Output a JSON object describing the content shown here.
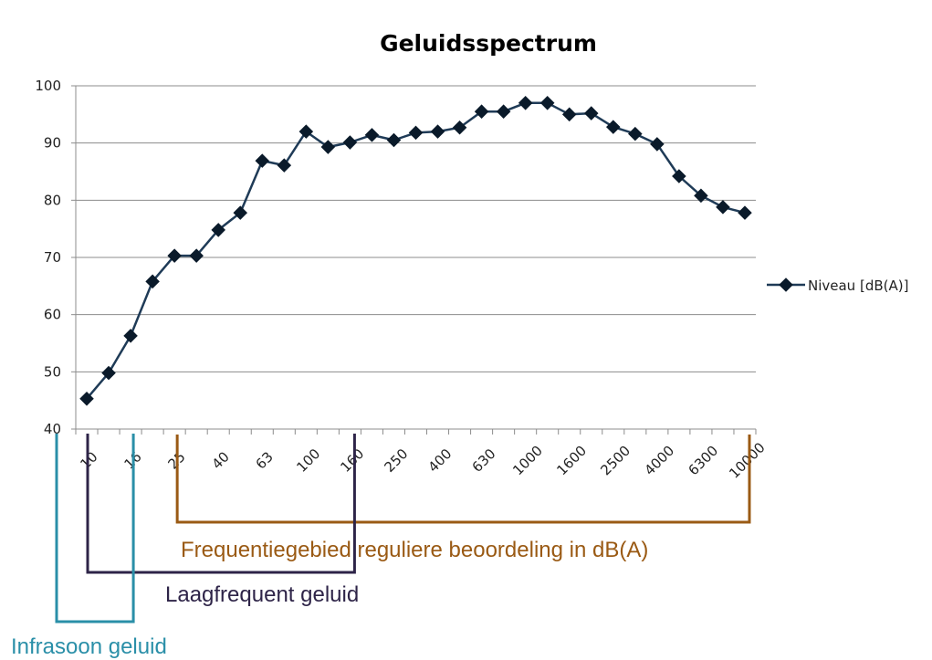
{
  "chart_data": {
    "type": "line",
    "title": "Geluidsspectrum",
    "xlabel": "",
    "ylabel": "",
    "ylim": [
      40,
      100
    ],
    "yticks": [
      "100",
      "90",
      "80",
      "70",
      "60",
      "50",
      "40"
    ],
    "grid": true,
    "legend_position": "right",
    "x_tick_labels": [
      "10",
      "16",
      "25",
      "40",
      "63",
      "100",
      "160",
      "250",
      "400",
      "630",
      "1000",
      "1600",
      "2500",
      "4000",
      "6300",
      "10000"
    ],
    "series": [
      {
        "name": "Niveau [dB(A)]",
        "color": "#1f3b57",
        "x": [
          10,
          12.5,
          16,
          20,
          25,
          31.5,
          40,
          50,
          63,
          80,
          100,
          125,
          160,
          200,
          250,
          315,
          400,
          500,
          630,
          800,
          1000,
          1250,
          1600,
          2000,
          2500,
          3150,
          4000,
          5000,
          6300,
          8000,
          10000
        ],
        "values": [
          45.3,
          49.8,
          56.3,
          65.8,
          70.3,
          70.3,
          74.8,
          77.8,
          86.9,
          86.1,
          92.0,
          89.3,
          90.1,
          91.4,
          90.5,
          91.8,
          92.0,
          92.7,
          95.5,
          95.5,
          97.0,
          97.0,
          95.0,
          95.2,
          92.8,
          91.6,
          89.8,
          84.2,
          80.8,
          78.8,
          77.8
        ]
      }
    ],
    "annotations": [
      {
        "text": "Frequentiegebied reguliere beoordeling in dB(A)",
        "color": "#9a5a14",
        "from": "25",
        "to": "10000"
      },
      {
        "text": "Laagfrequent geluid",
        "color": "#2e2448",
        "from": "10",
        "to": "160"
      },
      {
        "text": "Infrasoon geluid",
        "color": "#2a8fa8",
        "from": "",
        "to": "16"
      }
    ]
  }
}
